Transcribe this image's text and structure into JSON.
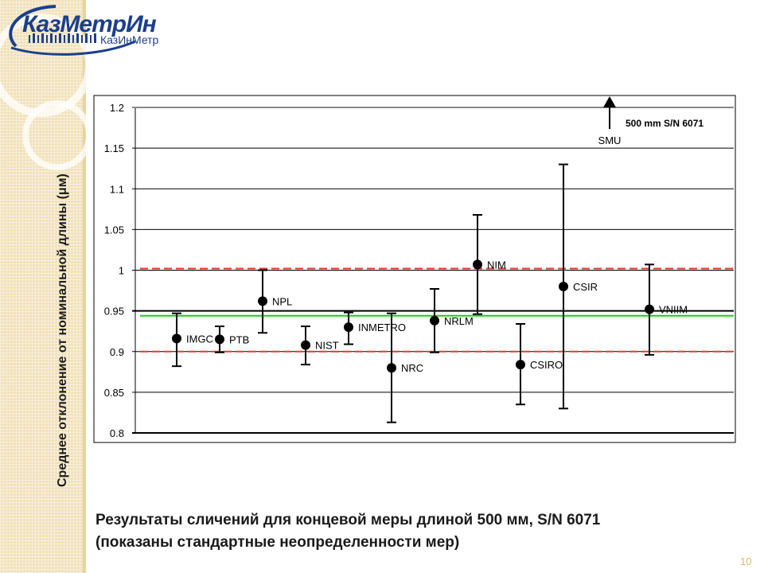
{
  "slide": {
    "logo_text": "КазМетрИн",
    "logo_subtext": "КазИнМетр",
    "caption_line1": "Результаты сличений для концевой меры длиной 500 мм, S/N 6071",
    "caption_line2": "(показаны стандартные  неопределенности мер)",
    "page_number": "10",
    "y_axis_label": "Среднее отклонение от номинальной длины (μм)"
  },
  "colors": {
    "reference_line": "#1ec81e",
    "limit_line": "#e03c2e",
    "marker": "#000000",
    "logo": "#1b3f8b",
    "sidebar": "#f1e1b8"
  },
  "chart_data": {
    "type": "scatter",
    "title": "",
    "xlabel": "",
    "ylabel": "Среднее отклонение от номинальной длины (μм)",
    "ylim": [
      0.8,
      1.2
    ],
    "yticks": [
      "0.8",
      "0.85",
      "0.9",
      "0.95",
      "1",
      "1.05",
      "1.1",
      "1.15",
      "1.2"
    ],
    "grid": true,
    "legend": "none",
    "annotation": "500 mm S/N 6071",
    "reference_value": 0.944,
    "limit_lines": [
      0.9,
      1.002
    ],
    "off_scale_point": {
      "label": "SMU",
      "arrow": "up"
    },
    "points": [
      {
        "label": "IMGC",
        "y": 0.916,
        "low": 0.882,
        "high": 0.947
      },
      {
        "label": "PTB",
        "y": 0.915,
        "low": 0.899,
        "high": 0.931
      },
      {
        "label": "NPL",
        "y": 0.962,
        "low": 0.923,
        "high": 1.0
      },
      {
        "label": "NIST",
        "y": 0.908,
        "low": 0.884,
        "high": 0.931
      },
      {
        "label": "INMETRO",
        "y": 0.93,
        "low": 0.909,
        "high": 0.948
      },
      {
        "label": "NRC",
        "y": 0.88,
        "low": 0.813,
        "high": 0.947
      },
      {
        "label": "NRLM",
        "y": 0.938,
        "low": 0.899,
        "high": 0.977
      },
      {
        "label": "NIM",
        "y": 1.007,
        "low": 0.946,
        "high": 1.068
      },
      {
        "label": "CSIRO",
        "y": 0.884,
        "low": 0.835,
        "high": 0.934
      },
      {
        "label": "CSIR",
        "y": 0.98,
        "low": 0.83,
        "high": 1.13
      },
      {
        "label": "VNIIM",
        "y": 0.952,
        "low": 0.896,
        "high": 1.007
      }
    ]
  }
}
